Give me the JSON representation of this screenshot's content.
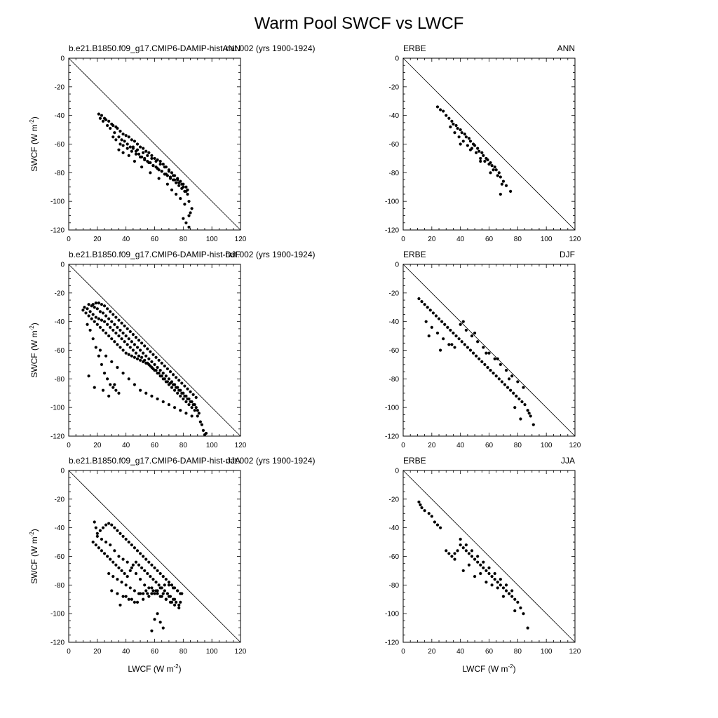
{
  "figure": {
    "title": "Warm Pool SWCF vs LWCF",
    "xlabel": "LWCF (W m",
    "ylabel": "SWCF (W m",
    "unit_exponent": "-2",
    "unit_close": ")"
  },
  "chart_data": [
    {
      "type": "scatter",
      "panel": "model-ann",
      "left_label": "b.e21.B1850.f09_g17.CMIP6-DAMIP-hist-nat.002 (yrs 1900-1924)",
      "right_label": "ANN",
      "xlim": [
        0,
        120
      ],
      "ylim": [
        -120,
        0
      ],
      "xticks": [
        0,
        20,
        40,
        60,
        80,
        100,
        120
      ],
      "yticks": [
        0,
        -20,
        -40,
        -60,
        -80,
        -100,
        -120
      ],
      "reference_line": [
        [
          0,
          0
        ],
        [
          120,
          -120
        ]
      ],
      "x": [
        21,
        23,
        25,
        26,
        28,
        30,
        31,
        33,
        34,
        36,
        38,
        40,
        42,
        44,
        46,
        48,
        50,
        52,
        54,
        56,
        58,
        60,
        62,
        64,
        66,
        68,
        70,
        72,
        74,
        76,
        78,
        80,
        82,
        22,
        24,
        27,
        29,
        32,
        35,
        37,
        39,
        41,
        43,
        45,
        47,
        49,
        51,
        53,
        55,
        57,
        59,
        61,
        63,
        65,
        67,
        69,
        71,
        73,
        75,
        77,
        79,
        81,
        83,
        31,
        33,
        36,
        38,
        41,
        44,
        47,
        50,
        53,
        56,
        59,
        62,
        65,
        68,
        71,
        74,
        77,
        80,
        83,
        84,
        86,
        45,
        48,
        52,
        55,
        58,
        61,
        64,
        67,
        70,
        73,
        76,
        79,
        82,
        84,
        35,
        38,
        42,
        46,
        51,
        57,
        63,
        69,
        72,
        75,
        78,
        81,
        85,
        80,
        82,
        84
      ],
      "y": [
        -39,
        -40,
        -42,
        -43,
        -44,
        -46,
        -47,
        -48,
        -49,
        -51,
        -53,
        -54,
        -55,
        -57,
        -58,
        -60,
        -62,
        -63,
        -65,
        -66,
        -68,
        -70,
        -71,
        -72,
        -74,
        -76,
        -78,
        -80,
        -82,
        -84,
        -86,
        -88,
        -90,
        -42,
        -44,
        -47,
        -49,
        -52,
        -55,
        -57,
        -58,
        -60,
        -62,
        -63,
        -65,
        -67,
        -69,
        -70,
        -72,
        -73,
        -75,
        -76,
        -78,
        -79,
        -81,
        -82,
        -84,
        -85,
        -87,
        -89,
        -91,
        -93,
        -95,
        -55,
        -57,
        -60,
        -61,
        -63,
        -65,
        -67,
        -69,
        -71,
        -73,
        -75,
        -77,
        -79,
        -81,
        -83,
        -85,
        -87,
        -90,
        -92,
        -100,
        -105,
        -62,
        -64,
        -66,
        -68,
        -70,
        -72,
        -74,
        -76,
        -79,
        -82,
        -85,
        -88,
        -93,
        -110,
        -64,
        -66,
        -68,
        -72,
        -76,
        -80,
        -84,
        -88,
        -92,
        -95,
        -98,
        -102,
        -108,
        -112,
        -115,
        -118
      ]
    },
    {
      "type": "scatter",
      "panel": "obs-ann",
      "left_label": "ERBE",
      "right_label": "ANN",
      "xlim": [
        0,
        120
      ],
      "ylim": [
        -120,
        0
      ],
      "xticks": [
        0,
        20,
        40,
        60,
        80,
        100,
        120
      ],
      "yticks": [
        0,
        -20,
        -40,
        -60,
        -80,
        -100,
        -120
      ],
      "reference_line": [
        [
          0,
          0
        ],
        [
          120,
          -120
        ]
      ],
      "x": [
        24,
        26,
        28,
        30,
        32,
        34,
        35,
        37,
        38,
        40,
        41,
        43,
        44,
        46,
        47,
        49,
        50,
        52,
        53,
        55,
        56,
        58,
        59,
        61,
        62,
        64,
        65,
        67,
        68,
        70,
        72,
        75,
        36,
        39,
        42,
        45,
        48,
        51,
        54,
        57,
        60,
        63,
        66,
        69,
        33,
        40,
        47,
        54,
        61,
        68
      ],
      "y": [
        -34,
        -36,
        -37,
        -40,
        -42,
        -44,
        -46,
        -47,
        -49,
        -50,
        -52,
        -53,
        -55,
        -56,
        -58,
        -60,
        -61,
        -63,
        -65,
        -66,
        -68,
        -70,
        -71,
        -73,
        -75,
        -76,
        -78,
        -80,
        -83,
        -86,
        -89,
        -93,
        -52,
        -55,
        -58,
        -61,
        -63,
        -66,
        -70,
        -72,
        -74,
        -78,
        -82,
        -88,
        -48,
        -60,
        -64,
        -72,
        -80,
        -95
      ]
    },
    {
      "type": "scatter",
      "panel": "model-djf",
      "left_label": "b.e21.B1850.f09_g17.CMIP6-DAMIP-hist-nat.002 (yrs 1900-1924)",
      "right_label": "DJF",
      "xlim": [
        0,
        120
      ],
      "ylim": [
        -120,
        0
      ],
      "xticks": [
        0,
        20,
        40,
        60,
        80,
        100,
        120
      ],
      "yticks": [
        0,
        -20,
        -40,
        -60,
        -80,
        -100,
        -120
      ],
      "reference_line": [
        [
          0,
          0
        ],
        [
          120,
          -120
        ]
      ],
      "x": [
        10,
        12,
        14,
        16,
        18,
        20,
        22,
        24,
        26,
        28,
        30,
        32,
        34,
        36,
        38,
        40,
        42,
        44,
        46,
        48,
        50,
        52,
        54,
        56,
        58,
        60,
        62,
        64,
        66,
        68,
        70,
        72,
        74,
        76,
        78,
        80,
        82,
        84,
        86,
        88,
        90,
        92,
        11,
        13,
        15,
        17,
        19,
        21,
        23,
        25,
        27,
        29,
        31,
        33,
        35,
        37,
        39,
        41,
        43,
        45,
        47,
        49,
        51,
        53,
        55,
        57,
        59,
        61,
        63,
        65,
        67,
        69,
        71,
        73,
        75,
        77,
        79,
        81,
        83,
        85,
        87,
        89,
        91,
        93,
        14,
        16,
        18,
        20,
        22,
        24,
        26,
        28,
        30,
        32,
        34,
        36,
        38,
        40,
        42,
        44,
        46,
        48,
        50,
        52,
        54,
        56,
        58,
        60,
        62,
        64,
        66,
        68,
        70,
        72,
        74,
        76,
        78,
        80,
        82,
        84,
        86,
        88,
        90,
        94,
        17,
        19,
        21,
        23,
        25,
        27,
        29,
        31,
        33,
        35,
        37,
        39,
        41,
        43,
        45,
        47,
        49,
        51,
        53,
        55,
        57,
        59,
        61,
        63,
        65,
        67,
        69,
        71,
        73,
        75,
        77,
        79,
        81,
        83,
        85,
        87,
        89,
        95,
        13,
        15,
        17,
        19,
        21,
        23,
        25,
        27,
        29,
        31,
        33,
        35,
        22,
        26,
        30,
        34,
        38,
        42,
        46,
        50,
        54,
        58,
        62,
        66,
        70,
        74,
        78,
        82,
        86,
        96,
        14,
        18,
        28,
        32,
        24
      ],
      "y": [
        -32,
        -34,
        -36,
        -38,
        -40,
        -42,
        -44,
        -46,
        -48,
        -50,
        -52,
        -54,
        -56,
        -58,
        -60,
        -62,
        -63,
        -64,
        -65,
        -66,
        -67,
        -68,
        -69,
        -70,
        -72,
        -74,
        -76,
        -78,
        -80,
        -82,
        -84,
        -86,
        -88,
        -90,
        -92,
        -94,
        -96,
        -98,
        -100,
        -102,
        -106,
        -110,
        -30,
        -31,
        -33,
        -35,
        -37,
        -38,
        -39,
        -40,
        -42,
        -44,
        -46,
        -48,
        -50,
        -52,
        -54,
        -56,
        -58,
        -60,
        -62,
        -64,
        -65,
        -67,
        -69,
        -71,
        -73,
        -74,
        -76,
        -78,
        -80,
        -82,
        -83,
        -84,
        -86,
        -88,
        -90,
        -92,
        -94,
        -96,
        -98,
        -100,
        -104,
        -112,
        -28,
        -29,
        -30,
        -31,
        -33,
        -34,
        -36,
        -38,
        -40,
        -42,
        -44,
        -46,
        -48,
        -50,
        -52,
        -54,
        -56,
        -58,
        -60,
        -62,
        -64,
        -66,
        -68,
        -70,
        -72,
        -74,
        -76,
        -78,
        -80,
        -82,
        -84,
        -86,
        -88,
        -90,
        -92,
        -94,
        -96,
        -98,
        -102,
        -116,
        -28,
        -27,
        -27,
        -28,
        -29,
        -31,
        -33,
        -35,
        -37,
        -39,
        -41,
        -43,
        -45,
        -47,
        -49,
        -51,
        -53,
        -55,
        -57,
        -59,
        -61,
        -63,
        -65,
        -67,
        -69,
        -71,
        -73,
        -75,
        -77,
        -79,
        -81,
        -83,
        -85,
        -87,
        -89,
        -91,
        -93,
        -119,
        -42,
        -46,
        -52,
        -58,
        -64,
        -70,
        -76,
        -80,
        -84,
        -86,
        -88,
        -90,
        -60,
        -64,
        -68,
        -72,
        -76,
        -80,
        -84,
        -88,
        -90,
        -92,
        -94,
        -96,
        -98,
        -100,
        -102,
        -104,
        -106,
        -118,
        -78,
        -86,
        -92,
        -84,
        -88
      ]
    },
    {
      "type": "scatter",
      "panel": "obs-djf",
      "left_label": "ERBE",
      "right_label": "DJF",
      "xlim": [
        0,
        120
      ],
      "ylim": [
        -120,
        0
      ],
      "xticks": [
        0,
        20,
        40,
        60,
        80,
        100,
        120
      ],
      "yticks": [
        0,
        -20,
        -40,
        -60,
        -80,
        -100,
        -120
      ],
      "reference_line": [
        [
          0,
          0
        ],
        [
          120,
          -120
        ]
      ],
      "x": [
        11,
        13,
        15,
        17,
        19,
        21,
        23,
        25,
        27,
        29,
        31,
        33,
        35,
        37,
        39,
        41,
        43,
        45,
        47,
        49,
        51,
        53,
        55,
        57,
        59,
        61,
        63,
        65,
        67,
        69,
        71,
        73,
        75,
        77,
        79,
        81,
        83,
        85,
        87,
        89,
        91,
        16,
        20,
        24,
        28,
        32,
        36,
        40,
        44,
        48,
        52,
        56,
        60,
        64,
        68,
        72,
        76,
        80,
        84,
        88,
        18,
        26,
        34,
        42,
        50,
        58,
        66,
        74,
        78,
        82
      ],
      "y": [
        -24,
        -26,
        -28,
        -30,
        -32,
        -34,
        -36,
        -38,
        -40,
        -42,
        -44,
        -46,
        -48,
        -50,
        -52,
        -54,
        -56,
        -58,
        -60,
        -62,
        -64,
        -66,
        -68,
        -70,
        -72,
        -74,
        -76,
        -78,
        -80,
        -82,
        -84,
        -86,
        -88,
        -90,
        -92,
        -94,
        -96,
        -98,
        -102,
        -106,
        -112,
        -40,
        -44,
        -48,
        -52,
        -56,
        -58,
        -42,
        -46,
        -50,
        -54,
        -58,
        -62,
        -66,
        -70,
        -74,
        -78,
        -82,
        -86,
        -104,
        -50,
        -60,
        -56,
        -40,
        -48,
        -62,
        -66,
        -80,
        -100,
        -108
      ]
    },
    {
      "type": "scatter",
      "panel": "model-jja",
      "left_label": "b.e21.B1850.f09_g17.CMIP6-DAMIP-hist-nat.002 (yrs 1900-1924)",
      "right_label": "JJA",
      "xlim": [
        0,
        120
      ],
      "ylim": [
        -120,
        0
      ],
      "xticks": [
        0,
        20,
        40,
        60,
        80,
        100,
        120
      ],
      "yticks": [
        0,
        -20,
        -40,
        -60,
        -80,
        -100,
        -120
      ],
      "reference_line": [
        [
          0,
          0
        ],
        [
          120,
          -120
        ]
      ],
      "x": [
        18,
        19,
        20,
        22,
        24,
        26,
        28,
        30,
        32,
        34,
        36,
        38,
        40,
        42,
        44,
        46,
        48,
        50,
        52,
        54,
        56,
        58,
        60,
        62,
        64,
        66,
        68,
        70,
        72,
        74,
        76,
        78,
        17,
        19,
        21,
        23,
        25,
        27,
        29,
        31,
        33,
        35,
        37,
        39,
        41,
        43,
        45,
        47,
        49,
        51,
        53,
        55,
        57,
        59,
        61,
        63,
        65,
        67,
        69,
        71,
        73,
        75,
        77,
        20,
        23,
        26,
        29,
        32,
        35,
        38,
        41,
        44,
        47,
        50,
        53,
        56,
        59,
        62,
        65,
        68,
        71,
        74,
        77,
        28,
        31,
        34,
        37,
        40,
        43,
        46,
        49,
        52,
        55,
        58,
        61,
        64,
        67,
        70,
        73,
        76,
        79,
        30,
        34,
        38,
        42,
        46,
        50,
        54,
        58,
        62,
        66,
        70,
        74,
        78,
        36,
        40,
        44,
        48,
        52,
        56,
        60,
        64,
        68,
        72,
        62,
        64,
        66,
        60,
        58
      ],
      "y": [
        -36,
        -40,
        -44,
        -42,
        -40,
        -38,
        -37,
        -38,
        -40,
        -42,
        -44,
        -46,
        -48,
        -50,
        -52,
        -54,
        -56,
        -58,
        -60,
        -62,
        -64,
        -66,
        -68,
        -70,
        -72,
        -74,
        -76,
        -78,
        -80,
        -82,
        -84,
        -86,
        -50,
        -52,
        -54,
        -56,
        -58,
        -60,
        -62,
        -64,
        -66,
        -68,
        -70,
        -72,
        -74,
        -70,
        -66,
        -64,
        -66,
        -68,
        -70,
        -72,
        -74,
        -76,
        -78,
        -80,
        -82,
        -84,
        -86,
        -88,
        -90,
        -92,
        -94,
        -46,
        -48,
        -50,
        -52,
        -56,
        -60,
        -62,
        -64,
        -68,
        -72,
        -76,
        -80,
        -82,
        -84,
        -86,
        -88,
        -90,
        -92,
        -94,
        -96,
        -72,
        -74,
        -76,
        -78,
        -80,
        -82,
        -84,
        -86,
        -86,
        -86,
        -86,
        -84,
        -82,
        -80,
        -80,
        -82,
        -84,
        -86,
        -84,
        -86,
        -88,
        -90,
        -92,
        -86,
        -84,
        -82,
        -84,
        -86,
        -88,
        -90,
        -92,
        -94,
        -88,
        -90,
        -92,
        -90,
        -88,
        -86,
        -88,
        -90,
        -92,
        -100,
        -106,
        -110,
        -104,
        -112
      ]
    },
    {
      "type": "scatter",
      "panel": "obs-jja",
      "left_label": "ERBE",
      "right_label": "JJA",
      "xlim": [
        0,
        120
      ],
      "ylim": [
        -120,
        0
      ],
      "xticks": [
        0,
        20,
        40,
        60,
        80,
        100,
        120
      ],
      "yticks": [
        0,
        -20,
        -40,
        -60,
        -80,
        -100,
        -120
      ],
      "reference_line": [
        [
          0,
          0
        ],
        [
          120,
          -120
        ]
      ],
      "x": [
        11,
        12,
        13,
        15,
        18,
        20,
        22,
        24,
        26,
        30,
        32,
        34,
        36,
        38,
        40,
        42,
        44,
        46,
        48,
        50,
        52,
        54,
        56,
        58,
        60,
        62,
        64,
        66,
        68,
        70,
        72,
        74,
        76,
        78,
        80,
        82,
        84,
        87,
        40,
        44,
        48,
        52,
        56,
        60,
        64,
        68,
        72,
        76,
        36,
        42,
        50,
        58,
        66,
        74,
        46,
        54,
        62,
        70,
        78
      ],
      "y": [
        -22,
        -24,
        -26,
        -28,
        -30,
        -32,
        -36,
        -38,
        -40,
        -56,
        -58,
        -60,
        -58,
        -56,
        -52,
        -54,
        -56,
        -58,
        -60,
        -62,
        -64,
        -66,
        -68,
        -70,
        -72,
        -74,
        -76,
        -78,
        -80,
        -82,
        -84,
        -86,
        -88,
        -90,
        -92,
        -96,
        -100,
        -110,
        -48,
        -52,
        -56,
        -60,
        -64,
        -68,
        -72,
        -76,
        -80,
        -84,
        -62,
        -70,
        -74,
        -78,
        -82,
        -86,
        -66,
        -72,
        -80,
        -88,
        -98
      ]
    }
  ]
}
